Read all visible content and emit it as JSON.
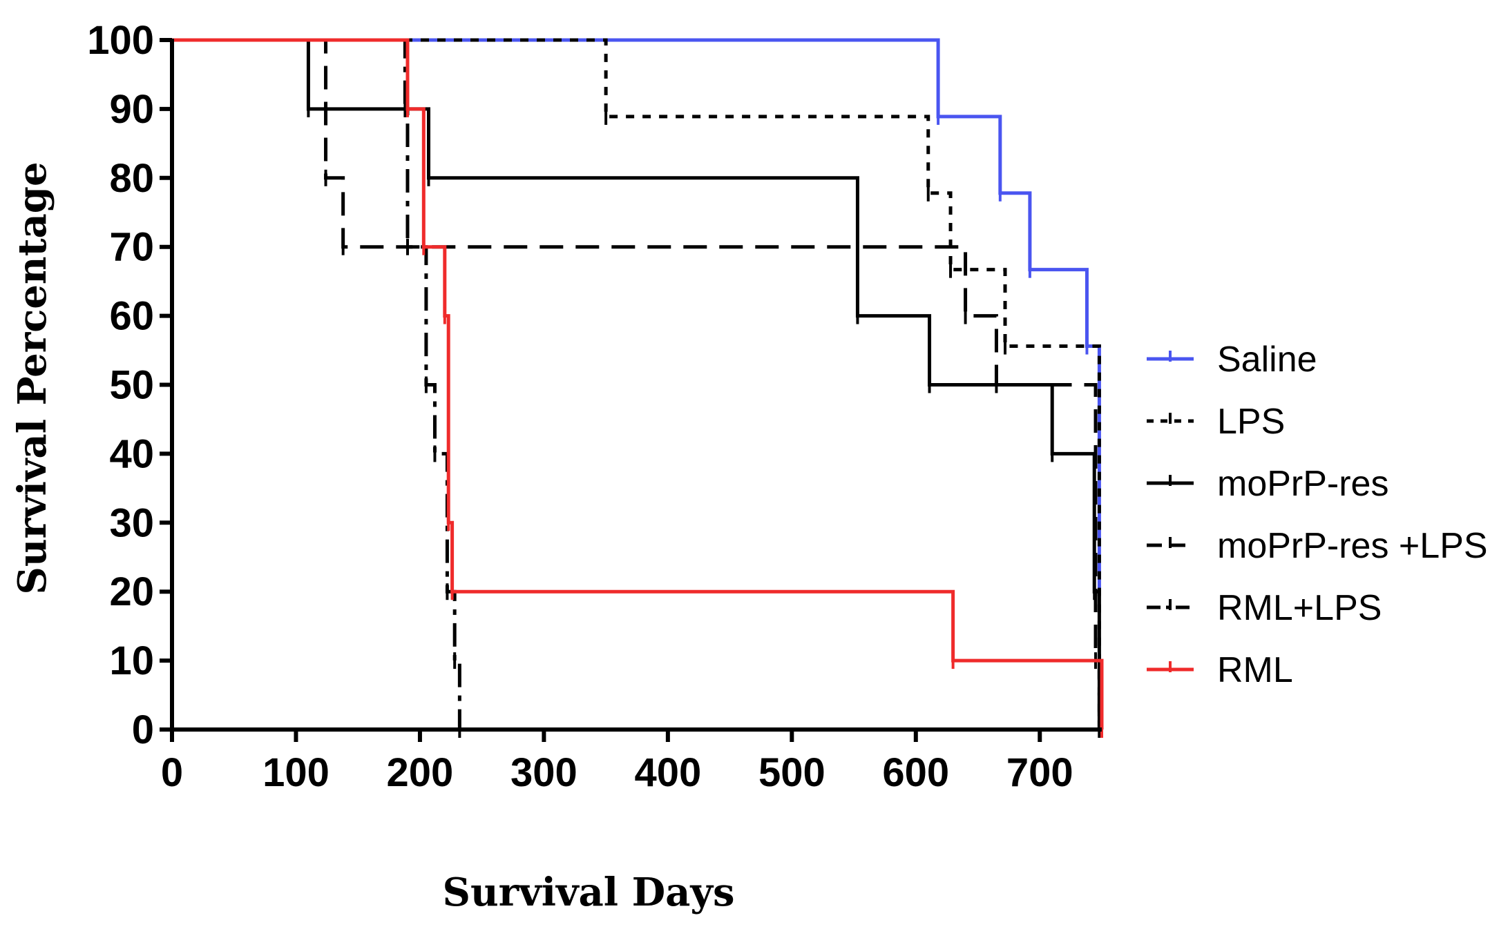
{
  "chart_data": {
    "type": "line",
    "subtype": "kaplan-meier",
    "title": "",
    "xlabel": "Survival Days",
    "ylabel": "Survival Percentage",
    "xlim": [
      0,
      750
    ],
    "ylim": [
      0,
      100
    ],
    "x_ticks": [
      "0",
      "100",
      "200",
      "300",
      "400",
      "500",
      "600",
      "700"
    ],
    "x_tick_values": [
      0,
      100,
      200,
      300,
      400,
      500,
      600,
      700
    ],
    "y_ticks": [
      "0",
      "10",
      "20",
      "30",
      "40",
      "50",
      "60",
      "70",
      "80",
      "90",
      "100"
    ],
    "y_tick_values": [
      0,
      10,
      20,
      30,
      40,
      50,
      60,
      70,
      80,
      90,
      100
    ],
    "grid": false,
    "legend_position": "right",
    "series": [
      {
        "name": "Saline",
        "color": "#4a55f0",
        "dash": "solid",
        "steps": [
          [
            0,
            100
          ],
          [
            618,
            88.9
          ],
          [
            668,
            77.8
          ],
          [
            692,
            66.7
          ],
          [
            738,
            55.6
          ],
          [
            748,
            20
          ]
        ]
      },
      {
        "name": "LPS",
        "color": "#000000",
        "dash": "dot",
        "steps": [
          [
            0,
            100
          ],
          [
            350,
            88.9
          ],
          [
            610,
            77.8
          ],
          [
            628,
            66.7
          ],
          [
            672,
            55.6
          ],
          [
            748,
            0
          ]
        ]
      },
      {
        "name": "moPrP-res",
        "color": "#000000",
        "dash": "solid",
        "steps": [
          [
            0,
            100
          ],
          [
            110,
            90
          ],
          [
            207,
            80
          ],
          [
            553,
            60
          ],
          [
            611,
            50
          ],
          [
            710,
            40
          ],
          [
            744,
            20
          ],
          [
            748,
            0
          ]
        ]
      },
      {
        "name": "moPrP-res +LPS",
        "color": "#000000",
        "dash": "dash",
        "steps": [
          [
            0,
            100
          ],
          [
            124,
            80
          ],
          [
            138,
            70
          ],
          [
            640,
            60
          ],
          [
            665,
            50
          ],
          [
            745,
            10
          ],
          [
            748,
            0
          ]
        ]
      },
      {
        "name": "RML+LPS",
        "color": "#000000",
        "dash": "dashdot",
        "steps": [
          [
            0,
            100
          ],
          [
            188,
            90
          ],
          [
            190,
            70
          ],
          [
            205,
            50
          ],
          [
            212,
            40
          ],
          [
            222,
            20
          ],
          [
            228,
            10
          ],
          [
            232,
            0
          ]
        ]
      },
      {
        "name": "RML",
        "color": "#ef2b2b",
        "dash": "solid",
        "steps": [
          [
            0,
            100
          ],
          [
            190,
            90
          ],
          [
            203,
            70
          ],
          [
            220,
            60
          ],
          [
            223,
            30
          ],
          [
            226,
            20
          ],
          [
            630,
            10
          ],
          [
            750,
            0
          ]
        ]
      }
    ]
  }
}
